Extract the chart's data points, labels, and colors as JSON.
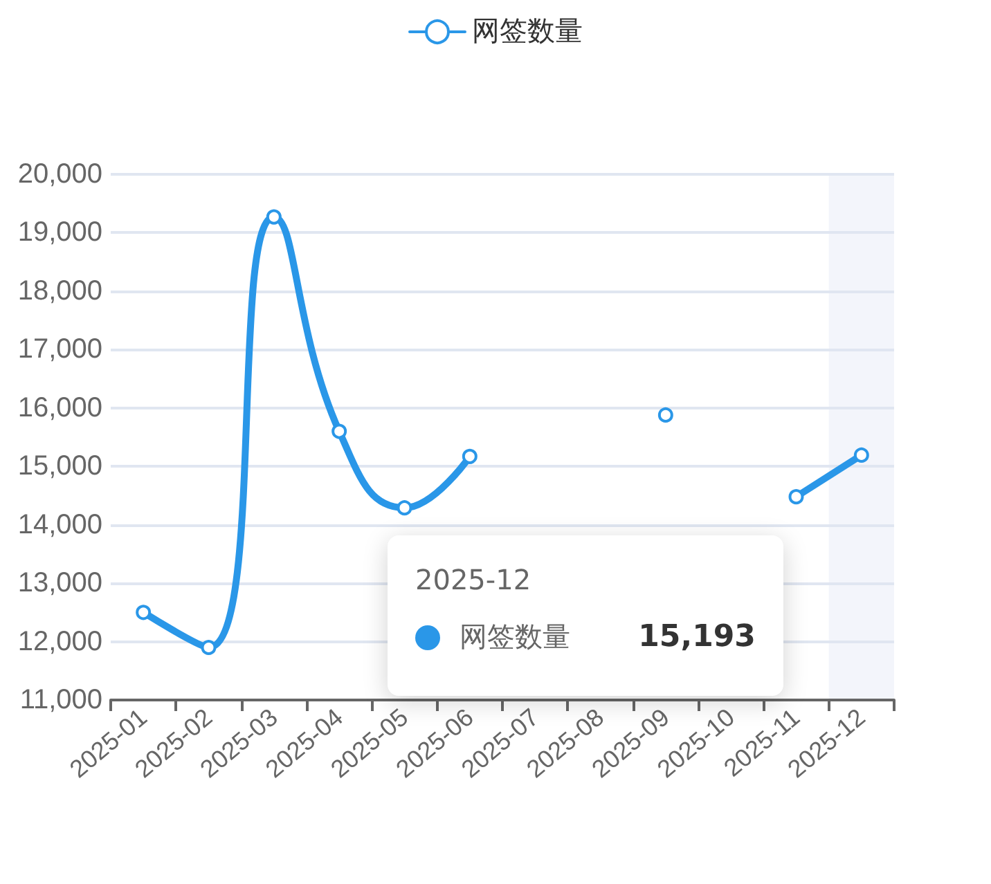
{
  "chart_data": {
    "type": "line",
    "categories": [
      "2025-01",
      "2025-02",
      "2025-03",
      "2025-04",
      "2025-05",
      "2025-06",
      "2025-07",
      "2025-08",
      "2025-09",
      "2025-10",
      "2025-11",
      "2025-12"
    ],
    "series": [
      {
        "name": "网签数量",
        "color": "#2a97e8",
        "values": [
          12500,
          11900,
          19270,
          15600,
          14290,
          15170,
          null,
          null,
          15880,
          null,
          14480,
          15193
        ]
      }
    ],
    "ylim": [
      11000,
      20000
    ],
    "yticks": [
      {
        "value": 11000,
        "label": "11,000"
      },
      {
        "value": 12000,
        "label": "12,000"
      },
      {
        "value": 13000,
        "label": "13,000"
      },
      {
        "value": 14000,
        "label": "14,000"
      },
      {
        "value": 15000,
        "label": "15,000"
      },
      {
        "value": 16000,
        "label": "16,000"
      },
      {
        "value": 17000,
        "label": "17,000"
      },
      {
        "value": 18000,
        "label": "18,000"
      },
      {
        "value": 19000,
        "label": "19,000"
      },
      {
        "value": 20000,
        "label": "20,000"
      }
    ],
    "grid": "y",
    "legend": "top",
    "marker": "circle",
    "line_style": "solid",
    "bands": [
      {
        "axis": "x",
        "from": "2025-12",
        "to": "2025-12",
        "color": "#f3f5fb"
      }
    ],
    "annotations": [
      "2025-12",
      "网签数量",
      "15,193"
    ]
  }
}
